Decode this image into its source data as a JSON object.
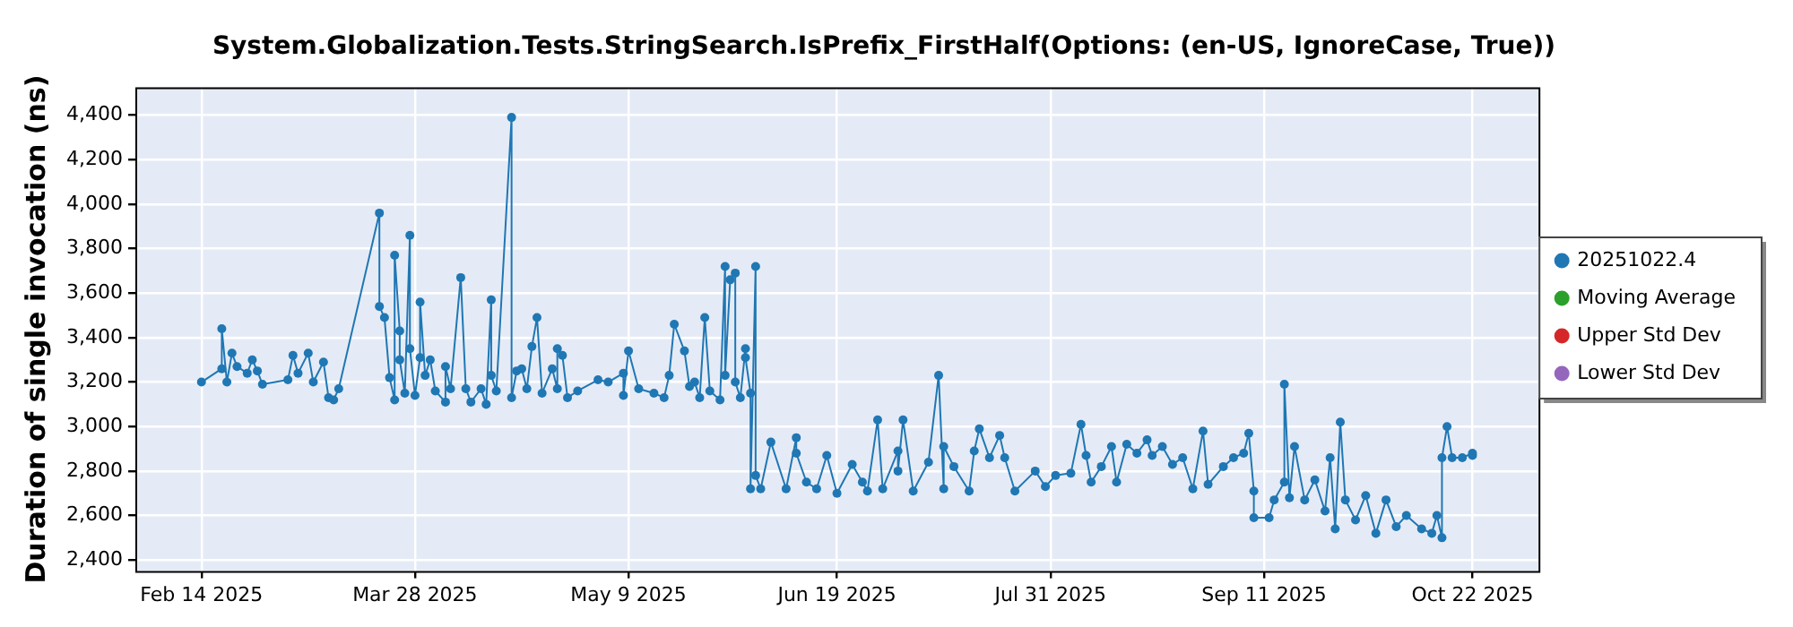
{
  "chart_data": {
    "type": "line",
    "title": "System.Globalization.Tests.StringSearch.IsPrefix_FirstHalf(Options: (en-US, IgnoreCase, True))",
    "ylabel": "Duration of single invocation (ns)",
    "xlim": [
      "2025-02-01",
      "2025-11-04"
    ],
    "xticks": [
      {
        "value": "2025-02-14",
        "label": "Feb 14 2025"
      },
      {
        "value": "2025-03-28",
        "label": "Mar 28 2025"
      },
      {
        "value": "2025-05-09",
        "label": "May 9 2025"
      },
      {
        "value": "2025-06-19",
        "label": "Jun 19 2025"
      },
      {
        "value": "2025-07-31",
        "label": "Jul 31 2025"
      },
      {
        "value": "2025-09-11",
        "label": "Sep 11 2025"
      },
      {
        "value": "2025-10-22",
        "label": "Oct 22 2025"
      }
    ],
    "ylim": [
      2350,
      4525
    ],
    "yticks": [
      {
        "value": 2400,
        "label": "2,400"
      },
      {
        "value": 2600,
        "label": "2,600"
      },
      {
        "value": 2800,
        "label": "2,800"
      },
      {
        "value": 3000,
        "label": "3,000"
      },
      {
        "value": 3200,
        "label": "3,200"
      },
      {
        "value": 3400,
        "label": "3,400"
      },
      {
        "value": 3600,
        "label": "3,600"
      },
      {
        "value": 3800,
        "label": "3,800"
      },
      {
        "value": 4000,
        "label": "4,000"
      },
      {
        "value": 4200,
        "label": "4,200"
      },
      {
        "value": 4400,
        "label": "4,400"
      }
    ],
    "grid": true,
    "legend": "right",
    "marker": "circle",
    "line_style": "solid",
    "series": [
      {
        "name": "20251022.4",
        "color": "#1f77b4",
        "x": [
          "2025-02-14",
          "2025-02-18",
          "2025-02-18",
          "2025-02-19",
          "2025-02-20",
          "2025-02-21",
          "2025-02-23",
          "2025-02-24",
          "2025-02-25",
          "2025-02-26",
          "2025-03-03",
          "2025-03-04",
          "2025-03-05",
          "2025-03-07",
          "2025-03-08",
          "2025-03-10",
          "2025-03-11",
          "2025-03-12",
          "2025-03-13",
          "2025-03-21",
          "2025-03-21",
          "2025-03-22",
          "2025-03-23",
          "2025-03-24",
          "2025-03-24",
          "2025-03-25",
          "2025-03-25",
          "2025-03-26",
          "2025-03-27",
          "2025-03-27",
          "2025-03-28",
          "2025-03-29",
          "2025-03-29",
          "2025-03-30",
          "2025-03-31",
          "2025-04-01",
          "2025-04-03",
          "2025-04-03",
          "2025-04-04",
          "2025-04-06",
          "2025-04-07",
          "2025-04-08",
          "2025-04-10",
          "2025-04-11",
          "2025-04-12",
          "2025-04-12",
          "2025-04-13",
          "2025-04-16",
          "2025-04-16",
          "2025-04-17",
          "2025-04-18",
          "2025-04-19",
          "2025-04-20",
          "2025-04-21",
          "2025-04-22",
          "2025-04-24",
          "2025-04-25",
          "2025-04-25",
          "2025-04-26",
          "2025-04-27",
          "2025-04-29",
          "2025-05-03",
          "2025-05-05",
          "2025-05-08",
          "2025-05-08",
          "2025-05-09",
          "2025-05-11",
          "2025-05-14",
          "2025-05-16",
          "2025-05-17",
          "2025-05-18",
          "2025-05-20",
          "2025-05-21",
          "2025-05-22",
          "2025-05-23",
          "2025-05-24",
          "2025-05-25",
          "2025-05-27",
          "2025-05-28",
          "2025-05-28",
          "2025-05-29",
          "2025-05-30",
          "2025-05-30",
          "2025-05-31",
          "2025-06-01",
          "2025-06-01",
          "2025-06-02",
          "2025-06-02",
          "2025-06-03",
          "2025-06-03",
          "2025-06-04",
          "2025-06-06",
          "2025-06-09",
          "2025-06-11",
          "2025-06-11",
          "2025-06-13",
          "2025-06-15",
          "2025-06-17",
          "2025-06-19",
          "2025-06-22",
          "2025-06-24",
          "2025-06-25",
          "2025-06-27",
          "2025-06-28",
          "2025-07-01",
          "2025-07-01",
          "2025-07-02",
          "2025-07-04",
          "2025-07-07",
          "2025-07-09",
          "2025-07-10",
          "2025-07-10",
          "2025-07-12",
          "2025-07-15",
          "2025-07-16",
          "2025-07-17",
          "2025-07-19",
          "2025-07-21",
          "2025-07-22",
          "2025-07-24",
          "2025-07-28",
          "2025-07-30",
          "2025-08-01",
          "2025-08-04",
          "2025-08-06",
          "2025-08-07",
          "2025-08-08",
          "2025-08-10",
          "2025-08-12",
          "2025-08-13",
          "2025-08-15",
          "2025-08-17",
          "2025-08-19",
          "2025-08-20",
          "2025-08-22",
          "2025-08-24",
          "2025-08-26",
          "2025-08-28",
          "2025-08-30",
          "2025-08-31",
          "2025-09-03",
          "2025-09-05",
          "2025-09-07",
          "2025-09-08",
          "2025-09-09",
          "2025-09-09",
          "2025-09-12",
          "2025-09-13",
          "2025-09-15",
          "2025-09-15",
          "2025-09-16",
          "2025-09-17",
          "2025-09-19",
          "2025-09-21",
          "2025-09-23",
          "2025-09-24",
          "2025-09-25",
          "2025-09-26",
          "2025-09-27",
          "2025-09-29",
          "2025-10-01",
          "2025-10-03",
          "2025-10-05",
          "2025-10-07",
          "2025-10-09",
          "2025-10-12",
          "2025-10-14",
          "2025-10-15",
          "2025-10-16",
          "2025-10-16",
          "2025-10-17",
          "2025-10-18",
          "2025-10-20",
          "2025-10-22",
          "2025-10-22"
        ],
        "values": [
          3200,
          3260,
          3440,
          3200,
          3330,
          3270,
          3240,
          3300,
          3250,
          3190,
          3210,
          3320,
          3240,
          3330,
          3200,
          3290,
          3130,
          3120,
          3170,
          3960,
          3540,
          3490,
          3220,
          3120,
          3770,
          3430,
          3300,
          3150,
          3860,
          3350,
          3140,
          3310,
          3560,
          3230,
          3300,
          3160,
          3110,
          3270,
          3170,
          3670,
          3170,
          3110,
          3170,
          3100,
          3570,
          3230,
          3160,
          4390,
          3130,
          3250,
          3260,
          3170,
          3360,
          3490,
          3150,
          3260,
          3170,
          3350,
          3320,
          3130,
          3160,
          3210,
          3200,
          3240,
          3140,
          3340,
          3170,
          3150,
          3130,
          3230,
          3460,
          3340,
          3180,
          3200,
          3130,
          3490,
          3160,
          3120,
          3720,
          3230,
          3660,
          3690,
          3200,
          3130,
          3350,
          3310,
          3150,
          2720,
          3720,
          2780,
          2720,
          2930,
          2720,
          2950,
          2880,
          2750,
          2720,
          2870,
          2700,
          2830,
          2750,
          2710,
          3030,
          2720,
          2890,
          2800,
          3030,
          2710,
          2840,
          3230,
          2720,
          2910,
          2820,
          2710,
          2890,
          2990,
          2860,
          2960,
          2860,
          2710,
          2800,
          2730,
          2780,
          2790,
          3010,
          2870,
          2750,
          2820,
          2910,
          2750,
          2920,
          2880,
          2940,
          2870,
          2910,
          2830,
          2860,
          2720,
          2980,
          2740,
          2820,
          2860,
          2880,
          2970,
          2710,
          2590,
          2590,
          2670,
          2750,
          3190,
          2680,
          2910,
          2670,
          2760,
          2620,
          2860,
          2540,
          3020,
          2670,
          2580,
          2690,
          2520,
          2670,
          2550,
          2600,
          2540,
          2520,
          2600,
          2500,
          2860,
          3000,
          2860,
          2860,
          2880,
          2870
        ]
      },
      {
        "name": "Moving Average",
        "color": "#2ca02c"
      },
      {
        "name": "Upper Std Dev",
        "color": "#d62728"
      },
      {
        "name": "Lower Std Dev",
        "color": "#9467bd"
      }
    ]
  }
}
